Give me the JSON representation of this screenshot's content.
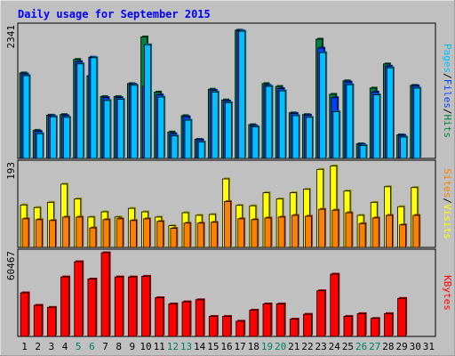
{
  "chart_data": {
    "type": "bar",
    "title": "Daily usage for September 2015",
    "days": [
      "1",
      "2",
      "3",
      "4",
      "5",
      "6",
      "7",
      "8",
      "9",
      "10",
      "11",
      "12",
      "13",
      "14",
      "15",
      "16",
      "17",
      "18",
      "19",
      "20",
      "21",
      "22",
      "23",
      "24",
      "25",
      "26",
      "27",
      "28",
      "29",
      "30",
      "31"
    ],
    "weekend_days": [
      "5",
      "6",
      "12",
      "13",
      "19",
      "20",
      "26",
      "27"
    ],
    "panels": [
      {
        "id": "pages-files-hits",
        "ymax_label": "2341",
        "ymax": 2341,
        "right_label_parts": [
          {
            "text": "Pages",
            "color": "#00c0ff"
          },
          {
            "text": "/",
            "color": "#000000"
          },
          {
            "text": "Files",
            "color": "#0040ff"
          },
          {
            "text": "/",
            "color": "#000000"
          },
          {
            "text": "Hits",
            "color": "#008040"
          }
        ],
        "series": [
          {
            "name": "Hits",
            "color": "#008040",
            "values": [
              1520,
              500,
              770,
              780,
              1760,
              1470,
              1100,
              1100,
              1330,
              2160,
              1180,
              470,
              760,
              340,
              1230,
              1040,
              2280,
              600,
              1330,
              1280,
              810,
              780,
              2120,
              1140,
              1380,
              260,
              1250,
              1680,
              420,
              1300,
              0
            ]
          },
          {
            "name": "Files",
            "color": "#0040ff",
            "values": [
              1500,
              480,
              760,
              760,
              1720,
              1800,
              1080,
              1080,
              1320,
              1280,
              1130,
              440,
              740,
              330,
              1210,
              1020,
              2270,
              580,
              1300,
              1240,
              800,
              770,
              1960,
              1080,
              1360,
              250,
              1180,
              1640,
              410,
              1290,
              0
            ]
          },
          {
            "name": "Pages",
            "color": "#00c0ff",
            "values": [
              1470,
              440,
              740,
              730,
              1680,
              1790,
              1030,
              1050,
              1300,
              2020,
              1090,
              400,
              680,
              290,
              1180,
              990,
              2260,
              560,
              1280,
              1200,
              760,
              730,
              1880,
              830,
              1310,
              230,
              1130,
              1610,
              380,
              1250,
              0
            ]
          }
        ]
      },
      {
        "id": "visits-sites",
        "ymax_label": "193",
        "ymax": 193,
        "right_label_parts": [
          {
            "text": "Sites",
            "color": "#ff8000"
          },
          {
            "text": "/",
            "color": "#000000"
          },
          {
            "text": "Visits",
            "color": "#ffff00"
          }
        ],
        "series": [
          {
            "name": "Visits",
            "color": "#ffff00",
            "values": [
              98,
              92,
              104,
              146,
              112,
              70,
              82,
              70,
              90,
              82,
              70,
              50,
              80,
              74,
              76,
              158,
              97,
              96,
              126,
              112,
              126,
              134,
              180,
              188,
              130,
              74,
              104,
              140,
              94,
              138,
              0
            ]
          },
          {
            "name": "Sites",
            "color": "#ff8000",
            "values": [
              66,
              64,
              62,
              70,
              70,
              45,
              64,
              66,
              62,
              66,
              60,
              44,
              56,
              56,
              58,
              106,
              66,
              64,
              68,
              70,
              74,
              72,
              88,
              86,
              80,
              55,
              68,
              74,
              52,
              74,
              0
            ]
          }
        ]
      },
      {
        "id": "kbytes",
        "ymax_label": "60467",
        "ymax": 60467,
        "right_label_parts": [
          {
            "text": "KBytes",
            "color": "#ff0000"
          }
        ],
        "series": [
          {
            "name": "KBytes",
            "color": "#ff0000",
            "values": [
              31500,
              22500,
              21000,
              43000,
              54000,
              41500,
              60467,
              43000,
              43000,
              43500,
              28000,
              23500,
              25000,
              26500,
              14500,
              14500,
              11000,
              19000,
              23500,
              23500,
              12500,
              16000,
              33000,
              45000,
              14500,
              16500,
              13000,
              16500,
              27500,
              0,
              0
            ]
          }
        ]
      }
    ]
  }
}
